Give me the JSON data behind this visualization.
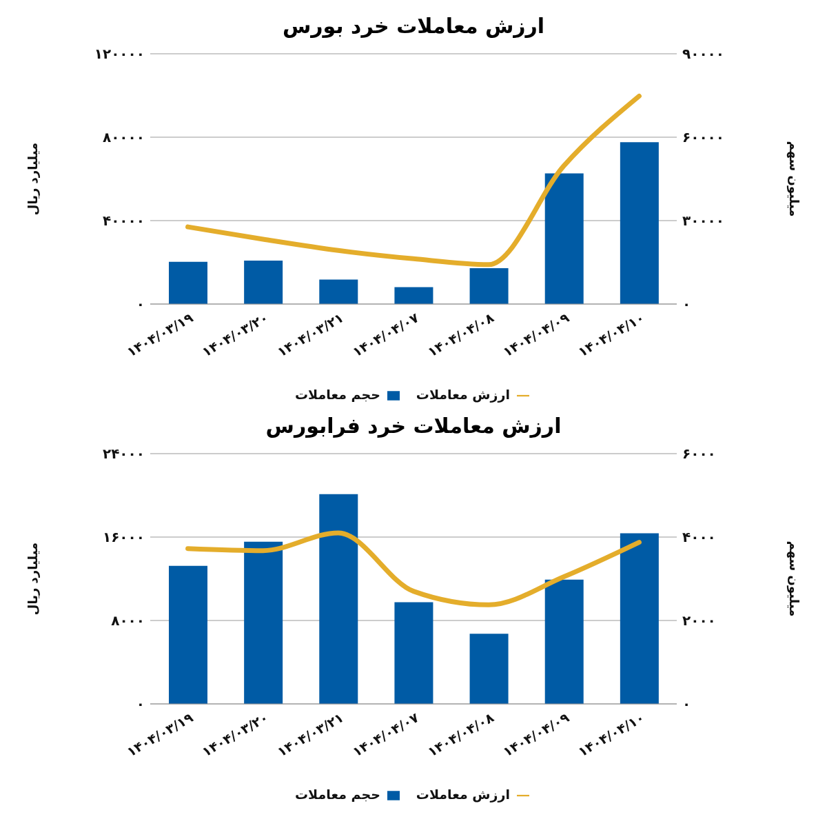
{
  "chart_data": [
    {
      "type": "bar",
      "title": "ارزش معاملات خرد بورس",
      "ylabel": "میلیارد ریال",
      "y2label": "میلیون سهم",
      "categories": [
        "۱۴۰۴/۰۳/۱۹",
        "۱۴۰۴/۰۳/۲۰",
        "۱۴۰۴/۰۳/۲۱",
        "۱۴۰۴/۰۴/۰۷",
        "۱۴۰۴/۰۴/۰۸",
        "۱۴۰۴/۰۴/۰۹",
        "۱۴۰۴/۰۴/۱۰"
      ],
      "series": [
        {
          "name": "حجم معاملات",
          "axis": "y2",
          "color": "#005ba5",
          "values": [
            15200,
            15600,
            8800,
            6100,
            12900,
            47000,
            58200
          ]
        },
        {
          "name": "ارزش معاملات",
          "type": "line",
          "color": "#e4ad2b",
          "values": [
            37000,
            31100,
            25700,
            21700,
            18900,
            66300,
            99700
          ]
        }
      ],
      "ylim": [
        0,
        120000
      ],
      "yticks": [
        {
          "value": 0,
          "label": "۰"
        },
        {
          "value": 40000,
          "label": "۴۰۰۰۰"
        },
        {
          "value": 80000,
          "label": "۸۰۰۰۰"
        },
        {
          "value": 120000,
          "label": "۱۲۰۰۰۰"
        }
      ],
      "y2lim": [
        0,
        90000
      ],
      "y2ticks": [
        {
          "value": 0,
          "label": "۰"
        },
        {
          "value": 30000,
          "label": "۳۰۰۰۰"
        },
        {
          "value": 60000,
          "label": "۶۰۰۰۰"
        },
        {
          "value": 90000,
          "label": "۹۰۰۰۰"
        }
      ],
      "grid": "y",
      "legend": "bottom",
      "marker": "none",
      "line_style": "solid"
    },
    {
      "type": "bar",
      "title": "ارزش معاملات خرد فرابورس",
      "ylabel": "میلیارد ریال",
      "y2label": "میلیون سهم",
      "categories": [
        "۱۴۰۴/۰۳/۱۹",
        "۱۴۰۴/۰۳/۲۰",
        "۱۴۰۴/۰۳/۲۱",
        "۱۴۰۴/۰۴/۰۷",
        "۱۴۰۴/۰۴/۰۸",
        "۱۴۰۴/۰۴/۰۹",
        "۱۴۰۴/۰۴/۱۰"
      ],
      "series": [
        {
          "name": "حجم معاملات",
          "axis": "y2",
          "color": "#005ba5",
          "values": [
            3310,
            3890,
            5030,
            2440,
            1680,
            2980,
            4090
          ]
        },
        {
          "name": "ارزش معاملات",
          "type": "line",
          "color": "#e4ad2b",
          "values": [
            14900,
            14700,
            16400,
            10800,
            9500,
            12200,
            15500
          ]
        }
      ],
      "ylim": [
        0,
        24000
      ],
      "yticks": [
        {
          "value": 0,
          "label": "۰"
        },
        {
          "value": 8000,
          "label": "۸۰۰۰"
        },
        {
          "value": 16000,
          "label": "۱۶۰۰۰"
        },
        {
          "value": 24000,
          "label": "۲۴۰۰۰"
        }
      ],
      "y2lim": [
        0,
        6000
      ],
      "y2ticks": [
        {
          "value": 0,
          "label": "۰"
        },
        {
          "value": 2000,
          "label": "۲۰۰۰"
        },
        {
          "value": 4000,
          "label": "۴۰۰۰"
        },
        {
          "value": 6000,
          "label": "۶۰۰۰"
        }
      ],
      "grid": "y",
      "legend": "bottom",
      "marker": "none",
      "line_style": "solid"
    }
  ]
}
